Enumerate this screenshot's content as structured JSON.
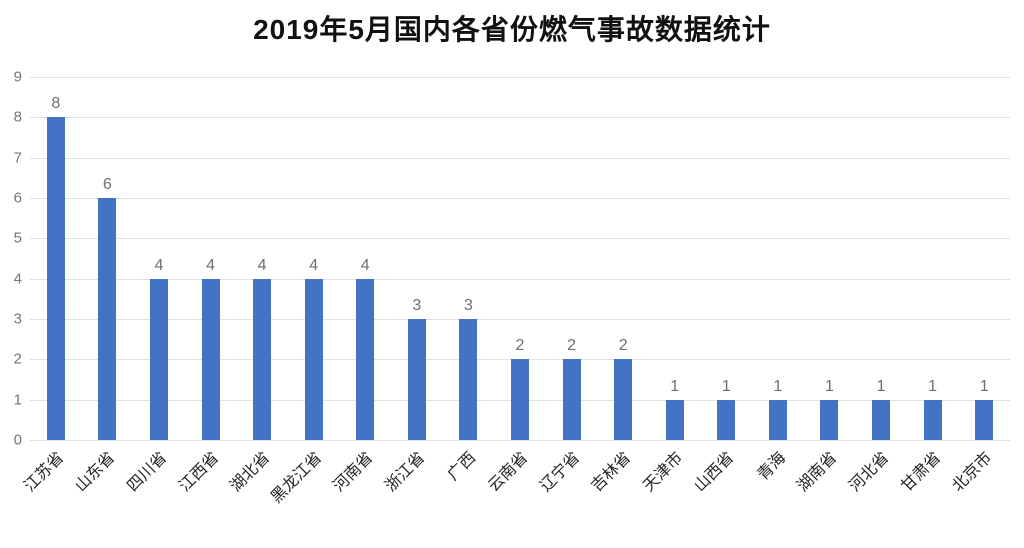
{
  "chart_data": {
    "type": "bar",
    "title": "2019年5月国内各省份燃气事故数据统计",
    "categories": [
      "江苏省",
      "山东省",
      "四川省",
      "江西省",
      "湖北省",
      "黑龙江省",
      "河南省",
      "浙江省",
      "广西",
      "云南省",
      "辽宁省",
      "吉林省",
      "天津市",
      "山西省",
      "青海",
      "湖南省",
      "河北省",
      "甘肃省",
      "北京市"
    ],
    "values": [
      8,
      6,
      4,
      4,
      4,
      4,
      4,
      3,
      3,
      2,
      2,
      2,
      1,
      1,
      1,
      1,
      1,
      1,
      1
    ],
    "xlabel": "",
    "ylabel": "",
    "ylim": [
      0,
      9
    ],
    "yticks": [
      0,
      1,
      2,
      3,
      4,
      5,
      6,
      7,
      8,
      9
    ],
    "grid": true,
    "legend_position": "none",
    "colors": {
      "bar": "#4472C4",
      "gridline": "#e1e1e1",
      "axis_tick_label": "#757575",
      "value_label": "#6e6e6e",
      "category_label": "#262626",
      "title": "#111111",
      "background": "#ffffff"
    }
  }
}
